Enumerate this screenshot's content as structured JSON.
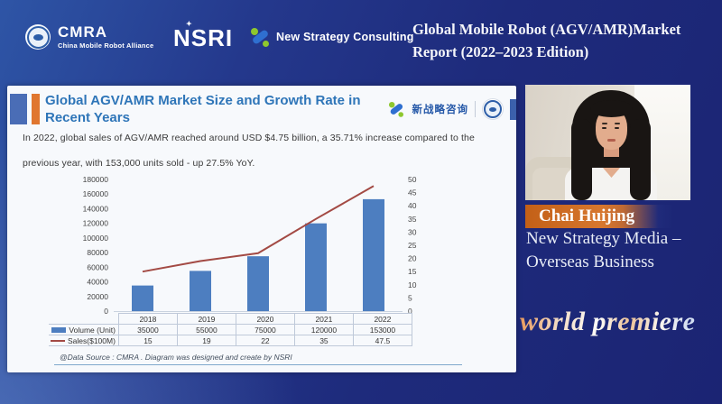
{
  "top_bar": {
    "cmra": {
      "abbr": "CMRA",
      "full_name": "China Mobile Robot Alliance"
    },
    "nsri_wordmark": "NSRI",
    "new_strategy_consulting": "New Strategy Consulting",
    "title_line1": "Global Mobile Robot (AGV/AMR)Market",
    "title_line2": "Report (2022–2023 Edition)"
  },
  "slide": {
    "title_line1": "Global AGV/AMR Market Size and Growth Rate in",
    "title_line2": "Recent Years",
    "logo_cn_label": "新战略咨询",
    "body_line1": "In 2022, global sales of AGV/AMR reached around USD $4.75 billion, a 35.71% increase compared to the",
    "body_line2": "previous year, with 153,000 units sold - up 27.5% YoY.",
    "footer": "@Data Source : CMRA . Diagram was designed and create by NSRI"
  },
  "chart_data": {
    "type": "bar",
    "subtype": "bar-line combo, dual axis",
    "categories": [
      "2018",
      "2019",
      "2020",
      "2021",
      "2022"
    ],
    "series": [
      {
        "name": "Volume (Unit)",
        "type": "bar",
        "axis": "left",
        "color": "#4d7ec0",
        "values": [
          35000,
          55000,
          75000,
          120000,
          153000
        ]
      },
      {
        "name": "Sales($100M)",
        "type": "line",
        "axis": "right",
        "color": "#a34a44",
        "values": [
          15,
          19,
          22,
          35,
          47.5
        ]
      }
    ],
    "left_axis": {
      "min": 0,
      "max": 180000,
      "step": 20000
    },
    "right_axis": {
      "min": 0,
      "max": 50,
      "step": 5
    },
    "grid": false,
    "legend_position": "bottom data table"
  },
  "speaker": {
    "name": "Chai Huijing",
    "role_line1": "New Strategy Media –",
    "role_line2": "Overseas Business"
  },
  "banner": {
    "world_premiere": "world premiere"
  },
  "colors": {
    "background_navy": "#1b2473",
    "accent_orange": "#e0762f",
    "slide_title_blue": "#2e75b8",
    "bar_blue": "#4d7ec0",
    "line_red": "#a34a44",
    "name_bar_orange": "#d7772e"
  }
}
